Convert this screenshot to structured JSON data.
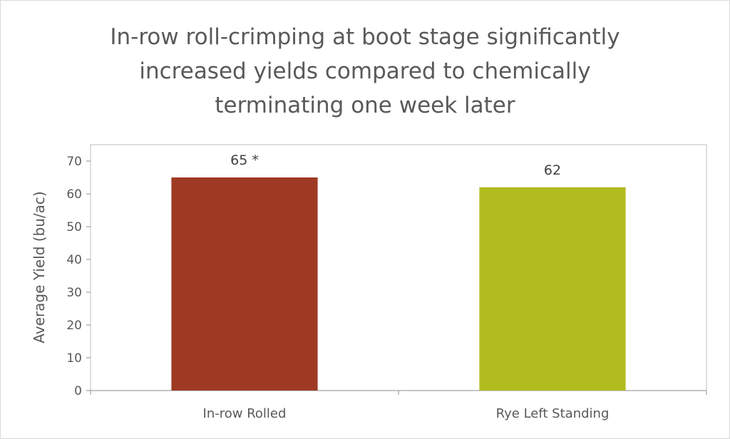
{
  "chart_data": {
    "type": "bar",
    "title_lines": [
      "In-row roll-crimping at boot stage significantly",
      "increased yields compared to chemically",
      "terminating one week later"
    ],
    "categories": [
      "In-row Rolled",
      "Rye Left Standing"
    ],
    "values": [
      65,
      62
    ],
    "data_labels": [
      "65 *",
      "62"
    ],
    "bar_colors": [
      "#9e3a23",
      "#b2bb1e"
    ],
    "xlabel": "",
    "ylabel": "Average Yield (bu/ac)",
    "ylim": [
      0,
      70
    ],
    "yticks": [
      0,
      10,
      20,
      30,
      40,
      50,
      60,
      70
    ],
    "grid": false,
    "legend": "none"
  }
}
